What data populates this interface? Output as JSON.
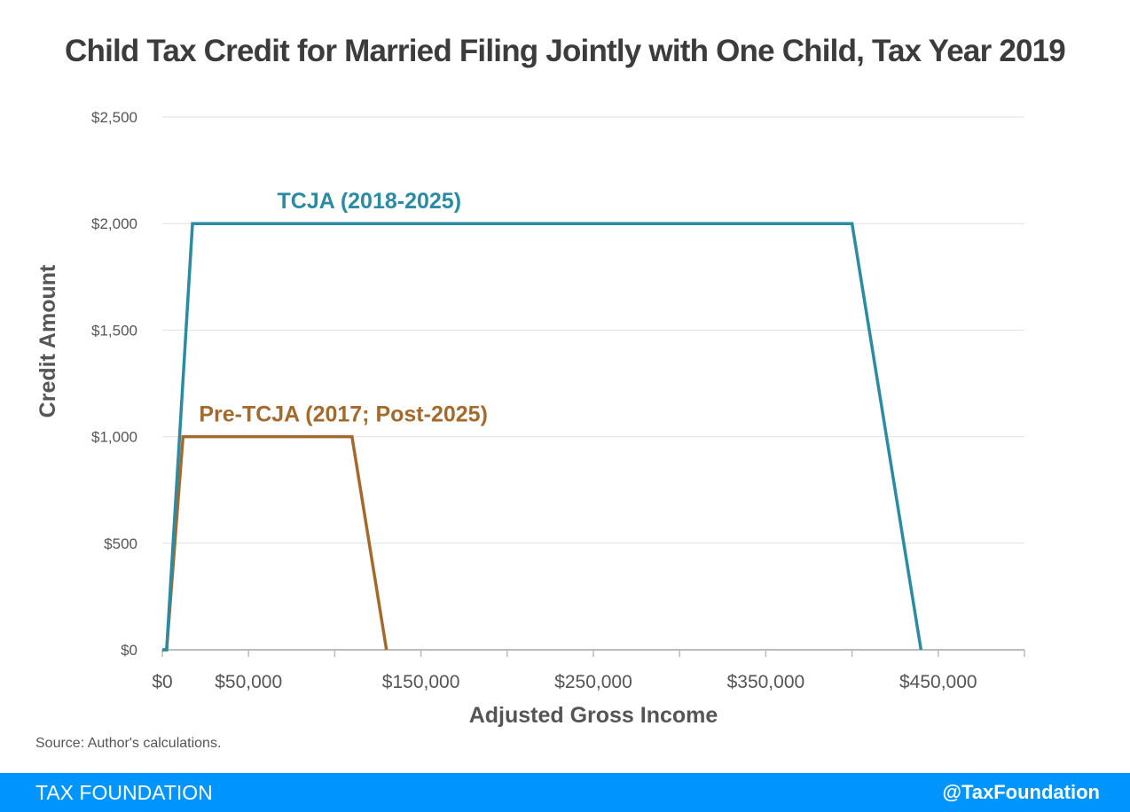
{
  "chart_data": {
    "type": "line",
    "title": "Child Tax Credit for Married Filing Jointly with One Child, Tax Year 2019",
    "xlabel": "Adjusted Gross Income",
    "ylabel": "Credit Amount",
    "xlim": [
      0,
      500000
    ],
    "ylim": [
      0,
      2500
    ],
    "x_tick_marks": [
      0,
      50000,
      100000,
      150000,
      200000,
      250000,
      300000,
      350000,
      400000,
      450000,
      500000
    ],
    "x_tick_labels": [
      {
        "value": 0,
        "label": "$0"
      },
      {
        "value": 50000,
        "label": "$50,000"
      },
      {
        "value": 150000,
        "label": "$150,000"
      },
      {
        "value": 250000,
        "label": "$250,000"
      },
      {
        "value": 350000,
        "label": "$350,000"
      },
      {
        "value": 450000,
        "label": "$450,000"
      }
    ],
    "y_ticks": [
      {
        "value": 0,
        "label": "$0"
      },
      {
        "value": 500,
        "label": "$500"
      },
      {
        "value": 1000,
        "label": "$1,000"
      },
      {
        "value": 1500,
        "label": "$1,500"
      },
      {
        "value": 2000,
        "label": "$2,000"
      },
      {
        "value": 2500,
        "label": "$2,500"
      }
    ],
    "grid": "horizontal",
    "series": [
      {
        "name": "TCJA (2018-2025)",
        "color": "#2b8ba3",
        "points": [
          [
            0,
            0
          ],
          [
            2500,
            0
          ],
          [
            17500,
            2000
          ],
          [
            400000,
            2000
          ],
          [
            440000,
            0
          ]
        ],
        "label_at": [
          120000,
          2000
        ]
      },
      {
        "name": "Pre-TCJA (2017; Post-2025)",
        "color": "#a36a2c",
        "points": [
          [
            0,
            0
          ],
          [
            2500,
            0
          ],
          [
            12000,
            1000
          ],
          [
            110000,
            1000
          ],
          [
            130000,
            0
          ]
        ],
        "label_at": [
          105000,
          1000
        ]
      }
    ]
  },
  "source": "Source: Author's calculations.",
  "footer": {
    "brand": "TAX FOUNDATION",
    "handle": "@TaxFoundation",
    "color": "#0094ff"
  }
}
